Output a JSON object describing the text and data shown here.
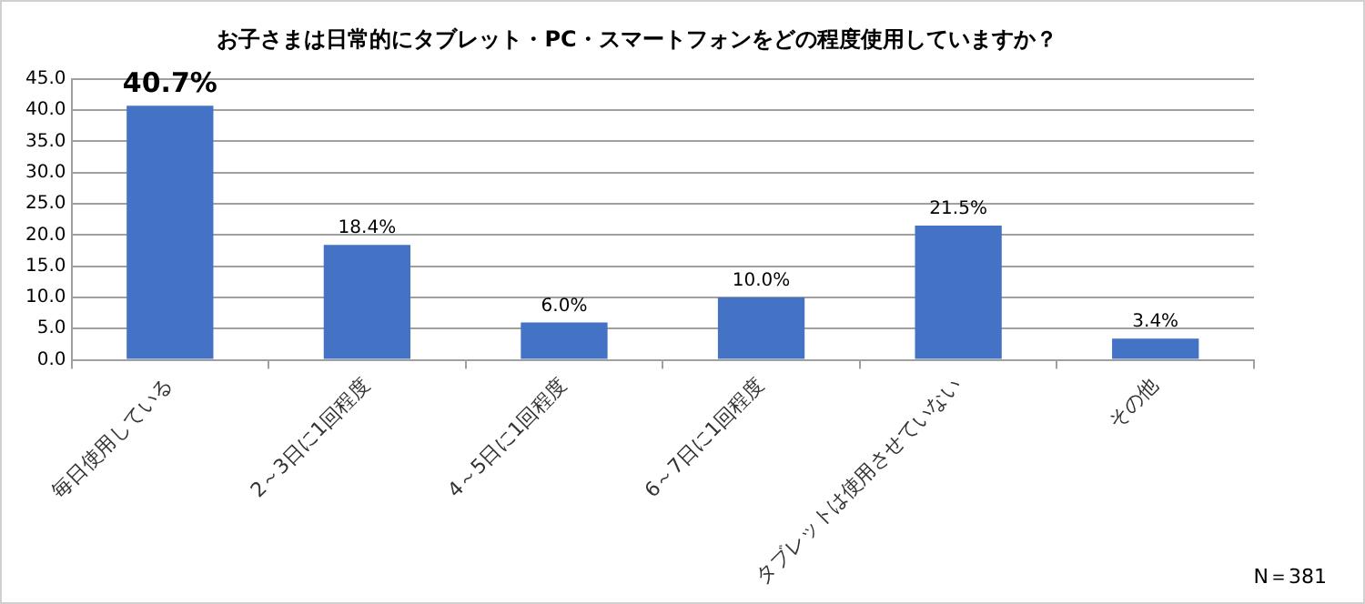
{
  "chart_data": {
    "type": "bar",
    "title": "お子さまは日常的にタブレット・PC・スマートフォンをどの程度使用していますか？",
    "categories": [
      "毎日使用している",
      "2～3日に1回程度",
      "4～5日に1回程度",
      "6～7日に1回程度",
      "タブレットは使用させていない",
      "その他"
    ],
    "values": [
      40.7,
      18.4,
      6.0,
      10.0,
      21.5,
      3.4
    ],
    "value_labels": [
      "40.7%",
      "18.4%",
      "6.0%",
      "10.0%",
      "21.5%",
      "3.4%"
    ],
    "color": "#4472c4",
    "ylim": [
      0,
      45
    ],
    "yticks": [
      {
        "value": 0,
        "label": "0.0"
      },
      {
        "value": 5,
        "label": "5.0"
      },
      {
        "value": 10,
        "label": "10.0"
      },
      {
        "value": 15,
        "label": "15.0"
      },
      {
        "value": 20,
        "label": "20.0"
      },
      {
        "value": 25,
        "label": "25.0"
      },
      {
        "value": 30,
        "label": "30.0"
      },
      {
        "value": 35,
        "label": "35.0"
      },
      {
        "value": 40,
        "label": "40.0"
      },
      {
        "value": 45,
        "label": "45.0"
      }
    ],
    "grid": "y",
    "annotations": [
      "N＝381"
    ]
  }
}
